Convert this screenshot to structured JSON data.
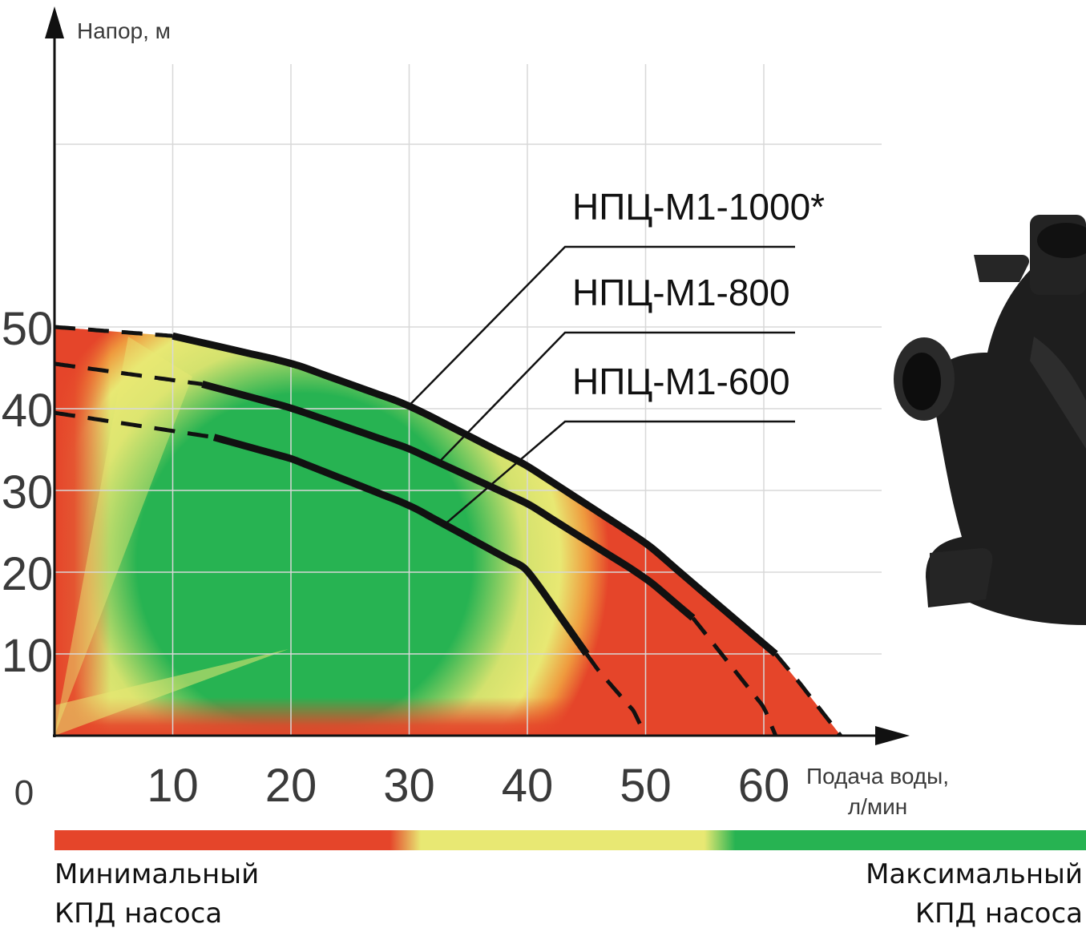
{
  "chart_data": {
    "type": "line",
    "ylabel": "Напор, м",
    "xlabel_line1": "Подача воды,",
    "xlabel_line2": "л/мин",
    "origin_label": "0",
    "x_ticks": [
      "10",
      "20",
      "30",
      "40",
      "50",
      "60"
    ],
    "y_ticks": [
      "10",
      "20",
      "30",
      "40",
      "50"
    ],
    "xlim": [
      0,
      75
    ],
    "ylim": [
      0,
      58
    ],
    "grid": true,
    "series": [
      {
        "name": "НПЦ-М1-1000*",
        "x": [
          0,
          10,
          20,
          30,
          40,
          50,
          55,
          61,
          63,
          66.5
        ],
        "y": [
          50,
          48.9,
          45.6,
          40.4,
          33,
          23.6,
          17.4,
          10,
          6.5,
          0
        ]
      },
      {
        "name": "НПЦ-М1-800",
        "x": [
          0,
          12.5,
          20,
          30,
          40,
          50,
          54,
          60,
          61
        ],
        "y": [
          45.5,
          43,
          40.1,
          35.1,
          28.4,
          19.3,
          14.4,
          3.5,
          0
        ]
      },
      {
        "name": "НПЦ-М1-600",
        "x": [
          0,
          13.5,
          20,
          30,
          40,
          45,
          46,
          49,
          50
        ],
        "y": [
          39.5,
          36.5,
          33.9,
          28.2,
          20.3,
          10,
          8,
          3,
          0
        ]
      }
    ],
    "dashed_segments": {
      "НПЦ-М1-1000*": [
        [
          0,
          10
        ],
        [
          61,
          66.5
        ]
      ],
      "НПЦ-М1-800": [
        [
          0,
          12.5
        ],
        [
          54,
          61
        ]
      ],
      "НПЦ-М1-600": [
        [
          0,
          13.5
        ],
        [
          45,
          50
        ]
      ]
    },
    "colors": {
      "min_efficiency": "#e5452a",
      "mid_efficiency": "#e8e873",
      "max_efficiency": "#27b352",
      "axis": "#111111",
      "grid": "#d8d8d8"
    }
  },
  "efficiency_scale": {
    "left_line1": "Минимальный",
    "left_line2": "КПД насоса",
    "right_line1": "Максимальный",
    "right_line2": "КПД насоса"
  },
  "product_image": {
    "icon": "pump-housing-icon",
    "color": "#1e1e1e"
  }
}
